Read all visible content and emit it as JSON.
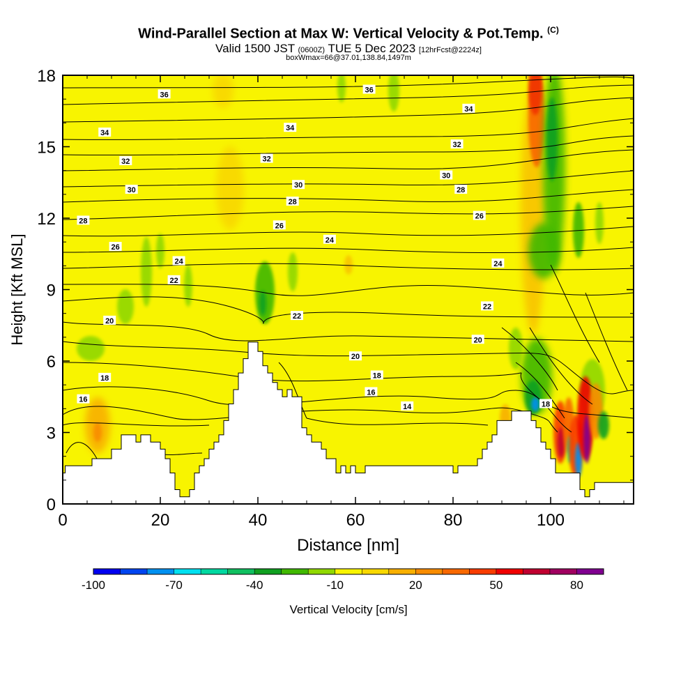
{
  "title": {
    "main": "Wind-Parallel Section at Max W: Vertical Velocity & Pot.Temp.",
    "copyright": "(C)",
    "valid_prefix": "Valid 1500 JST",
    "valid_utc": "(0600Z)",
    "valid_date": "TUE 5 Dec 2023",
    "forecast": "[12hrFcst@2224z]",
    "box": "boxWmax=66@37.01,138.84,1497m"
  },
  "chart_data": {
    "type": "heatmap",
    "xlabel": "Distance [nm]",
    "ylabel": "Height [Kft MSL]",
    "xlim": [
      0,
      117
    ],
    "ylim": [
      0,
      18
    ],
    "x_ticks": [
      "0",
      "20",
      "40",
      "60",
      "80",
      "100"
    ],
    "x_tick_values": [
      0,
      20,
      40,
      60,
      80,
      100
    ],
    "y_ticks": [
      "0",
      "3",
      "6",
      "9",
      "12",
      "15",
      "18"
    ],
    "y_tick_values": [
      0,
      3,
      6,
      9,
      12,
      15,
      18
    ],
    "background_color": "#f8f400",
    "terrain": [
      [
        0,
        1.3
      ],
      [
        0.5,
        1.3
      ],
      [
        0.5,
        1.6
      ],
      [
        6,
        1.6
      ],
      [
        6,
        1.9
      ],
      [
        10,
        1.9
      ],
      [
        10,
        2.3
      ],
      [
        12,
        2.3
      ],
      [
        12,
        2.9
      ],
      [
        15,
        2.9
      ],
      [
        15,
        2.6
      ],
      [
        16,
        2.6
      ],
      [
        16,
        2.9
      ],
      [
        18,
        2.9
      ],
      [
        18,
        2.6
      ],
      [
        20,
        2.6
      ],
      [
        20,
        2.3
      ],
      [
        21,
        2.3
      ],
      [
        21,
        1.9
      ],
      [
        22,
        1.9
      ],
      [
        22,
        1.3
      ],
      [
        23,
        1.3
      ],
      [
        23,
        0.6
      ],
      [
        24,
        0.6
      ],
      [
        24,
        0.3
      ],
      [
        26,
        0.3
      ],
      [
        26,
        0.6
      ],
      [
        27,
        0.6
      ],
      [
        27,
        1.3
      ],
      [
        28,
        1.3
      ],
      [
        28,
        1.6
      ],
      [
        29,
        1.6
      ],
      [
        29,
        1.9
      ],
      [
        30,
        1.9
      ],
      [
        30,
        2.3
      ],
      [
        31,
        2.3
      ],
      [
        31,
        2.6
      ],
      [
        32,
        2.6
      ],
      [
        32,
        2.9
      ],
      [
        33,
        2.9
      ],
      [
        33,
        3.5
      ],
      [
        34,
        3.5
      ],
      [
        34,
        4.2
      ],
      [
        35,
        4.2
      ],
      [
        35,
        4.8
      ],
      [
        36,
        4.8
      ],
      [
        36,
        5.5
      ],
      [
        37,
        5.5
      ],
      [
        37,
        6.1
      ],
      [
        38,
        6.1
      ],
      [
        38,
        6.8
      ],
      [
        40,
        6.8
      ],
      [
        40,
        6.4
      ],
      [
        41,
        6.4
      ],
      [
        41,
        5.8
      ],
      [
        42,
        5.8
      ],
      [
        42,
        5.5
      ],
      [
        43,
        5.5
      ],
      [
        43,
        5.1
      ],
      [
        44,
        5.1
      ],
      [
        44,
        4.8
      ],
      [
        45,
        4.8
      ],
      [
        45,
        4.5
      ],
      [
        46,
        4.5
      ],
      [
        46,
        4.8
      ],
      [
        47,
        4.8
      ],
      [
        47,
        4.5
      ],
      [
        49,
        4.5
      ],
      [
        49,
        3.2
      ],
      [
        50,
        3.2
      ],
      [
        50,
        2.9
      ],
      [
        51,
        2.9
      ],
      [
        51,
        2.6
      ],
      [
        53,
        2.6
      ],
      [
        53,
        2.3
      ],
      [
        54,
        2.3
      ],
      [
        54,
        1.9
      ],
      [
        56,
        1.9
      ],
      [
        56,
        1.3
      ],
      [
        57,
        1.3
      ],
      [
        57,
        1.6
      ],
      [
        58,
        1.6
      ],
      [
        58,
        1.3
      ],
      [
        59,
        1.3
      ],
      [
        59,
        1.6
      ],
      [
        60,
        1.6
      ],
      [
        60,
        1.3
      ],
      [
        62,
        1.3
      ],
      [
        62,
        1.6
      ],
      [
        80,
        1.6
      ],
      [
        80,
        1.3
      ],
      [
        81,
        1.3
      ],
      [
        81,
        1.6
      ],
      [
        85,
        1.6
      ],
      [
        85,
        1.9
      ],
      [
        86,
        1.9
      ],
      [
        86,
        2.3
      ],
      [
        87,
        2.3
      ],
      [
        87,
        2.6
      ],
      [
        88,
        2.6
      ],
      [
        88,
        2.9
      ],
      [
        89,
        2.9
      ],
      [
        89,
        3.5
      ],
      [
        92,
        3.5
      ],
      [
        92,
        3.9
      ],
      [
        96,
        3.9
      ],
      [
        96,
        3.5
      ],
      [
        97,
        3.5
      ],
      [
        97,
        3.2
      ],
      [
        98,
        3.2
      ],
      [
        98,
        2.6
      ],
      [
        99,
        2.6
      ],
      [
        99,
        2.3
      ],
      [
        100,
        2.3
      ],
      [
        100,
        1.9
      ],
      [
        101,
        1.9
      ],
      [
        101,
        1.3
      ],
      [
        106,
        1.3
      ],
      [
        106,
        0.6
      ],
      [
        107,
        0.6
      ],
      [
        107,
        0.3
      ],
      [
        108,
        0.3
      ],
      [
        108,
        0.6
      ],
      [
        109,
        0.6
      ],
      [
        109,
        0.9
      ],
      [
        117,
        0.9
      ]
    ],
    "contour_variable": "potential temperature",
    "contour_levels": [
      14,
      16,
      18,
      20,
      22,
      24,
      26,
      28,
      30,
      32,
      34,
      36
    ],
    "contour_labels": [
      {
        "text": "36",
        "x": 20.8,
        "y": 17.2
      },
      {
        "text": "36",
        "x": 62.8,
        "y": 17.4
      },
      {
        "text": "34",
        "x": 8.6,
        "y": 15.6
      },
      {
        "text": "34",
        "x": 46.6,
        "y": 15.8
      },
      {
        "text": "34",
        "x": 83.2,
        "y": 16.6
      },
      {
        "text": "32",
        "x": 12.9,
        "y": 14.4
      },
      {
        "text": "32",
        "x": 41.8,
        "y": 14.5
      },
      {
        "text": "32",
        "x": 80.8,
        "y": 15.1
      },
      {
        "text": "30",
        "x": 14.1,
        "y": 13.2
      },
      {
        "text": "30",
        "x": 48.3,
        "y": 13.4
      },
      {
        "text": "30",
        "x": 78.6,
        "y": 13.8
      },
      {
        "text": "28",
        "x": 4.2,
        "y": 11.9
      },
      {
        "text": "28",
        "x": 47.1,
        "y": 12.7
      },
      {
        "text": "28",
        "x": 81.6,
        "y": 13.2
      },
      {
        "text": "26",
        "x": 10.8,
        "y": 10.8
      },
      {
        "text": "26",
        "x": 44.4,
        "y": 11.7
      },
      {
        "text": "26",
        "x": 85.4,
        "y": 12.1
      },
      {
        "text": "24",
        "x": 23.8,
        "y": 10.2
      },
      {
        "text": "24",
        "x": 54.7,
        "y": 11.1
      },
      {
        "text": "24",
        "x": 89.2,
        "y": 10.1
      },
      {
        "text": "22",
        "x": 22.8,
        "y": 9.4
      },
      {
        "text": "22",
        "x": 48.0,
        "y": 7.9
      },
      {
        "text": "22",
        "x": 87.0,
        "y": 8.3
      },
      {
        "text": "20",
        "x": 9.6,
        "y": 7.7
      },
      {
        "text": "20",
        "x": 60.0,
        "y": 6.2
      },
      {
        "text": "20",
        "x": 85.1,
        "y": 6.9
      },
      {
        "text": "18",
        "x": 8.6,
        "y": 5.3
      },
      {
        "text": "18",
        "x": 64.4,
        "y": 5.4
      },
      {
        "text": "18",
        "x": 99.0,
        "y": 4.2
      },
      {
        "text": "16",
        "x": 4.2,
        "y": 4.4
      },
      {
        "text": "16",
        "x": 63.2,
        "y": 4.7
      },
      {
        "text": "14",
        "x": 70.6,
        "y": 4.1
      }
    ],
    "features": [
      {
        "name": "updraft-core",
        "value_cm_s": 80,
        "x": 108,
        "y": 3.2
      },
      {
        "name": "updraft-core",
        "value_cm_s": 70,
        "x": 103,
        "y": 3.2
      },
      {
        "name": "downdraft-core",
        "value_cm_s": -100,
        "x": 97,
        "y": 4.2
      },
      {
        "name": "downdraft-core",
        "value_cm_s": -70,
        "x": 105,
        "y": 2.5
      },
      {
        "name": "updraft-column",
        "value_cm_s": 50,
        "x": 97.5,
        "y": 17
      },
      {
        "name": "downdraft-column",
        "value_cm_s": -40,
        "x": 101.5,
        "y": 16
      },
      {
        "name": "downdraft",
        "value_cm_s": -40,
        "x": 41,
        "y": 8.7
      }
    ],
    "colorbar": {
      "label": "Vertical Velocity [cm/s]",
      "tick_labels": [
        "-100",
        "-70",
        "-40",
        "-10",
        "20",
        "50",
        "80"
      ],
      "colors": [
        "#0000f0",
        "#0044f0",
        "#0090f0",
        "#00e0f0",
        "#00d8a0",
        "#10c060",
        "#10a020",
        "#40b800",
        "#90d800",
        "#f8f400",
        "#f8d800",
        "#f8b000",
        "#f88c00",
        "#f86800",
        "#f83c00",
        "#f00000",
        "#c00030",
        "#a00060",
        "#800090"
      ]
    }
  }
}
